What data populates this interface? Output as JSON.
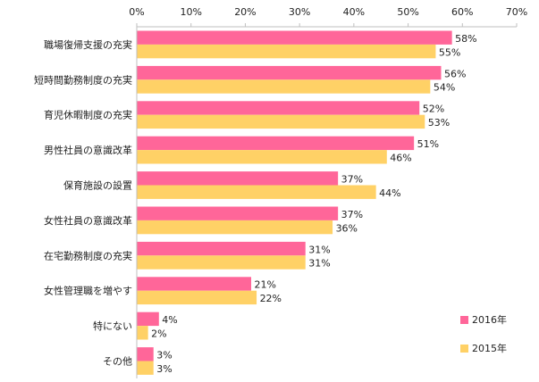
{
  "chart_data": {
    "type": "bar",
    "orientation": "horizontal",
    "categories": [
      "職場復帰支援の充実",
      "短時間勤務制度の充実",
      "育児休暇制度の充実",
      "男性社員の意識改革",
      "保育施設の設置",
      "女性社員の意識改革",
      "在宅勤務制度の充実",
      "女性管理職を増やす",
      "特にない",
      "その他"
    ],
    "series": [
      {
        "name": "2016年",
        "color": "#ff6699",
        "values": [
          58,
          56,
          52,
          51,
          37,
          37,
          31,
          21,
          4,
          3
        ]
      },
      {
        "name": "2015年",
        "color": "#ffd166",
        "values": [
          55,
          54,
          53,
          46,
          44,
          36,
          31,
          22,
          2,
          3
        ]
      }
    ],
    "value_suffix": "%",
    "xlim": [
      0,
      70
    ],
    "xticks": [
      0,
      10,
      20,
      30,
      40,
      50,
      60,
      70
    ],
    "xtick_labels": [
      "0%",
      "10%",
      "20%",
      "30%",
      "40%",
      "50%",
      "60%",
      "70%"
    ],
    "axis_position": "top",
    "grid": false,
    "legend_position": "bottom-right"
  }
}
